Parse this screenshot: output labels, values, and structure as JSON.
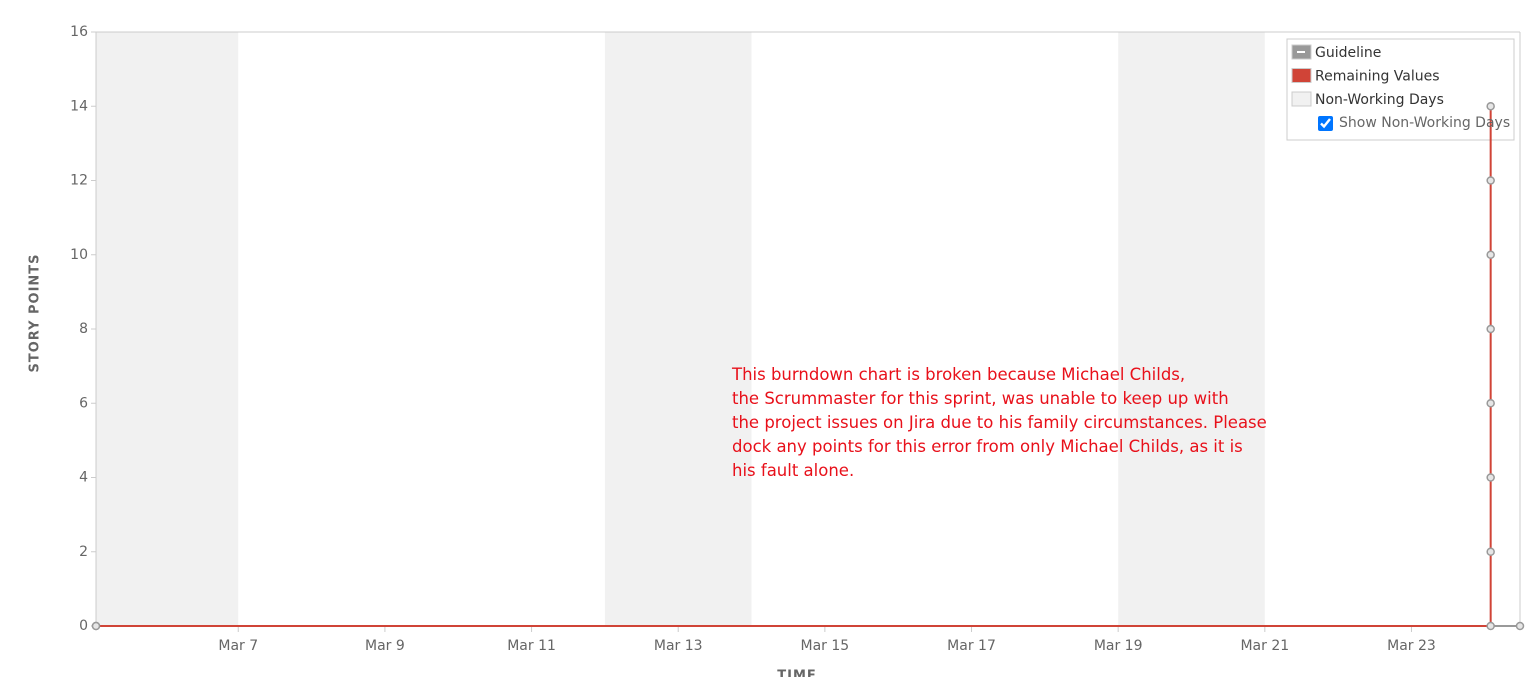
{
  "chart_data": {
    "type": "line",
    "y_label": "STORY POINTS",
    "x_label": "TIME",
    "xlim": [
      5.06,
      24.48
    ],
    "ylim": [
      0,
      16
    ],
    "yticks": [
      0,
      2,
      4,
      6,
      8,
      10,
      12,
      14,
      16
    ],
    "xticks": [
      {
        "value": 7,
        "label": "Mar 7"
      },
      {
        "value": 9,
        "label": "Mar 9"
      },
      {
        "value": 11,
        "label": "Mar 11"
      },
      {
        "value": 13,
        "label": "Mar 13"
      },
      {
        "value": 15,
        "label": "Mar 15"
      },
      {
        "value": 17,
        "label": "Mar 17"
      },
      {
        "value": 19,
        "label": "Mar 19"
      },
      {
        "value": 21,
        "label": "Mar 21"
      },
      {
        "value": 23,
        "label": "Mar 23"
      }
    ],
    "non_working_days": {
      "name": "Non-Working Days",
      "color": "#f1f1f1",
      "ranges": [
        [
          5.06,
          7
        ],
        [
          12,
          14
        ],
        [
          19,
          21
        ]
      ]
    },
    "show_non_working_days": true,
    "show_non_working_days_label": "Show Non-Working Days",
    "series": [
      {
        "name": "Guideline",
        "color": "#999999",
        "x": [
          5.06,
          24.48
        ],
        "values": [
          0,
          0
        ]
      },
      {
        "name": "Remaining Values",
        "color": "#d04437",
        "x": [
          5.06,
          24.08,
          24.08,
          24.08,
          24.08,
          24.08,
          24.08,
          24.08,
          24.08
        ],
        "values": [
          0,
          0,
          2,
          4,
          6,
          8,
          10,
          12,
          14
        ]
      }
    ],
    "annotation": [
      "This burndown chart is broken because Michael Childs,",
      "the Scrummaster for this sprint, was unable to keep up with",
      "the project issues on Jira due to his family circumstances. Please",
      "dock any points for this error from only Michael Childs, as it is",
      "his fault alone."
    ]
  }
}
